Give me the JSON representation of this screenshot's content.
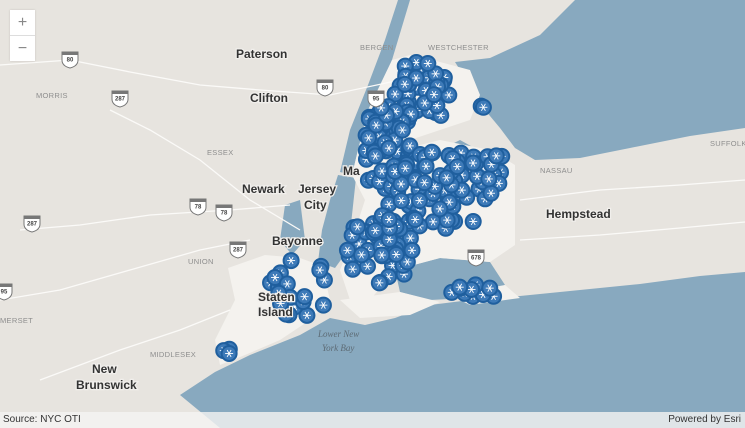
{
  "map": {
    "labels": {
      "paterson": "Paterson",
      "clifton": "Clifton",
      "newark": "Newark",
      "jersey": "Jersey",
      "city": "City",
      "bayonne": "Bayonne",
      "staten1": "Staten",
      "staten2": "Island",
      "new": "New",
      "brunswick": "Brunswick",
      "hempstead": "Hempstead",
      "manhattan": "Ma",
      "bay1": "Lower New",
      "bay2": "York Bay"
    },
    "counties": {
      "morris": "MORRIS",
      "essex": "ESSEX",
      "union": "UNION",
      "bergen": "BERGEN",
      "westchester": "WESTCHESTER",
      "nassau": "NASSAU",
      "suffolk": "SUFFOLK",
      "middlesex": "MIDDLESEX",
      "somerset": "MERSET"
    },
    "shields": [
      "80",
      "287",
      "80",
      "95",
      "78",
      "78",
      "287",
      "287",
      "95",
      "678"
    ],
    "colors": {
      "land": "#e7e4df",
      "water": "#88a9bf",
      "city": "#f4f2ee",
      "marker": "#1f5f9e"
    },
    "marker_icon": "snowflake-icon"
  },
  "controls": {
    "zoom_in": "+",
    "zoom_out": "−"
  },
  "attribution": {
    "source": "Source: NYC OTI",
    "powered": "Powered by Esri"
  }
}
